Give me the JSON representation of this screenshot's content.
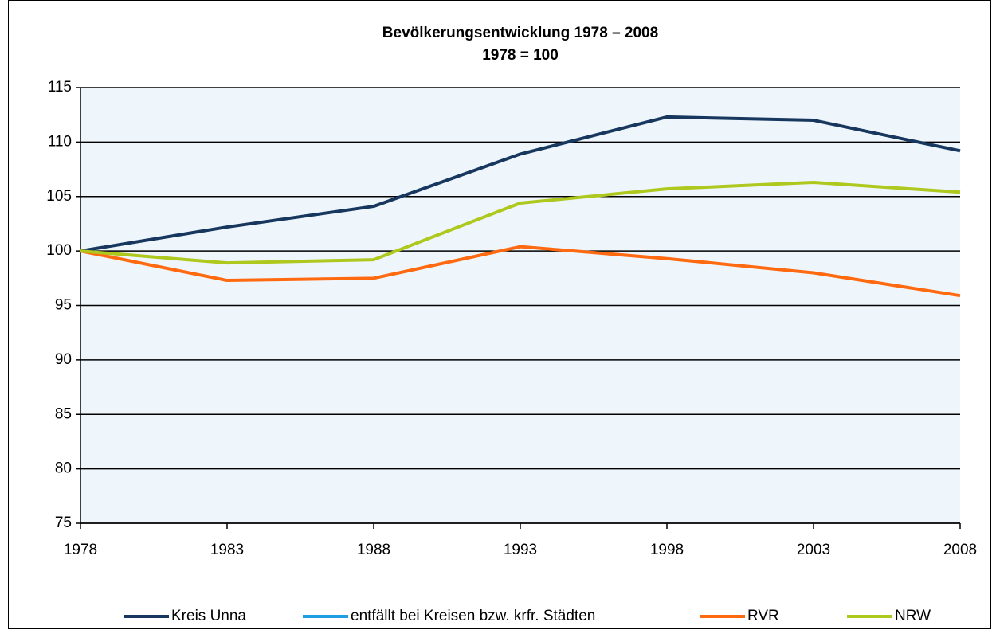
{
  "chart_data": {
    "type": "line",
    "title": "Bevölkerungsentwicklung 1978 – 2008",
    "subtitle": "1978 = 100",
    "categories": [
      "1978",
      "1983",
      "1988",
      "1993",
      "1998",
      "2003",
      "2008"
    ],
    "series": [
      {
        "name": "Kreis Unna",
        "color": "#17375e",
        "values": [
          100,
          102.2,
          104.1,
          108.9,
          112.3,
          112.0,
          109.2
        ]
      },
      {
        "name": "entfällt bei Kreisen bzw. krfr. Städten",
        "color": "#1e9ee0",
        "values": [
          null,
          null,
          null,
          null,
          null,
          null,
          null
        ]
      },
      {
        "name": "RVR",
        "color": "#ff6a10",
        "values": [
          100,
          97.3,
          97.5,
          100.4,
          99.3,
          98.0,
          95.9
        ]
      },
      {
        "name": "NRW",
        "color": "#aec81e",
        "values": [
          100,
          98.9,
          99.2,
          104.4,
          105.7,
          106.3,
          105.4
        ]
      }
    ],
    "ylim": [
      75,
      115
    ],
    "yticks": [
      75,
      80,
      85,
      90,
      95,
      100,
      105,
      110,
      115
    ],
    "grid": true,
    "legend": "bottom"
  }
}
